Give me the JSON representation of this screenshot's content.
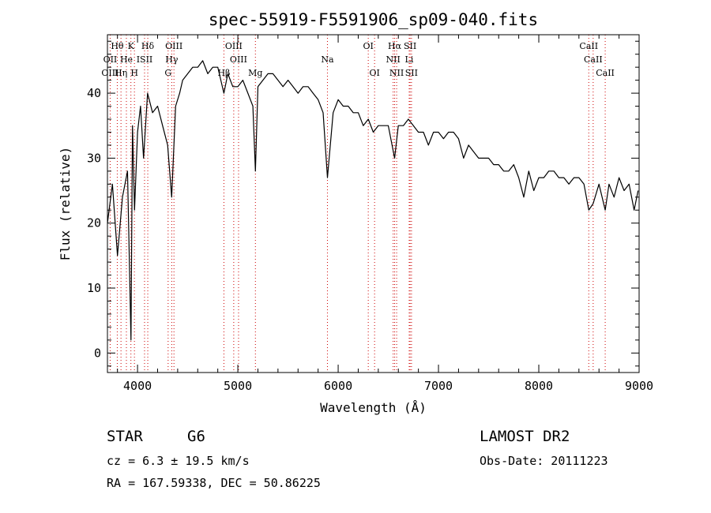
{
  "chart_data": {
    "type": "line",
    "title": "spec-55919-F5591906_sp09-040.fits",
    "xlabel": "Wavelength (Å)",
    "ylabel": "Flux (relative)",
    "xlim": [
      3700,
      9000
    ],
    "ylim": [
      -3,
      49
    ],
    "xticks": [
      4000,
      5000,
      6000,
      7000,
      8000,
      9000
    ],
    "yticks": [
      0,
      10,
      20,
      30,
      40
    ],
    "grid": false,
    "series": [
      {
        "x": [
          3700,
          3750,
          3800,
          3850,
          3900,
          3935,
          3950,
          3970,
          4000,
          4030,
          4060,
          4100,
          4150,
          4200,
          4250,
          4300,
          4340,
          4380,
          4420,
          4450,
          4500,
          4550,
          4600,
          4650,
          4700,
          4750,
          4800,
          4861,
          4900,
          4950,
          5000,
          5050,
          5100,
          5150,
          5175,
          5200,
          5250,
          5300,
          5350,
          5400,
          5450,
          5500,
          5550,
          5600,
          5650,
          5700,
          5750,
          5800,
          5850,
          5893,
          5950,
          6000,
          6050,
          6100,
          6150,
          6200,
          6250,
          6300,
          6350,
          6400,
          6450,
          6500,
          6563,
          6600,
          6650,
          6700,
          6750,
          6800,
          6850,
          6900,
          6950,
          7000,
          7050,
          7100,
          7150,
          7200,
          7250,
          7300,
          7350,
          7400,
          7450,
          7500,
          7550,
          7600,
          7650,
          7700,
          7750,
          7800,
          7850,
          7900,
          7950,
          8000,
          8050,
          8100,
          8150,
          8200,
          8250,
          8300,
          8350,
          8400,
          8450,
          8498,
          8542,
          8600,
          8662,
          8700,
          8750,
          8800,
          8850,
          8900,
          8950,
          8990
        ],
        "y": [
          20,
          26,
          15,
          24,
          28,
          2,
          35,
          22,
          34,
          38,
          30,
          40,
          37,
          38,
          35,
          32,
          24,
          38,
          40,
          42,
          43,
          44,
          44,
          45,
          43,
          44,
          44,
          40,
          43,
          41,
          41,
          42,
          40,
          38,
          28,
          41,
          42,
          43,
          43,
          42,
          41,
          42,
          41,
          40,
          41,
          41,
          40,
          39,
          37,
          27,
          37,
          39,
          38,
          38,
          37,
          37,
          35,
          36,
          34,
          35,
          35,
          35,
          30,
          35,
          35,
          36,
          35,
          34,
          34,
          32,
          34,
          34,
          33,
          34,
          34,
          33,
          30,
          32,
          31,
          30,
          30,
          30,
          29,
          29,
          28,
          28,
          29,
          27,
          24,
          28,
          25,
          27,
          27,
          28,
          28,
          27,
          27,
          26,
          27,
          27,
          26,
          22,
          23,
          26,
          22,
          26,
          24,
          27,
          25,
          26,
          22,
          25
        ]
      }
    ],
    "line_labels": [
      {
        "text": "Hθ",
        "x": 3798,
        "row": 0
      },
      {
        "text": "K",
        "x": 3934,
        "row": 0
      },
      {
        "text": "Hδ",
        "x": 4102,
        "row": 0
      },
      {
        "text": "OIII",
        "x": 4363,
        "row": 0
      },
      {
        "text": "OIII",
        "x": 4959,
        "row": 0
      },
      {
        "text": "OI",
        "x": 6300,
        "row": 0
      },
      {
        "text": "Hα",
        "x": 6563,
        "row": 0
      },
      {
        "text": "SII",
        "x": 6717,
        "row": 0
      },
      {
        "text": "CaII",
        "x": 8498,
        "row": 0
      },
      {
        "text": "OII",
        "x": 3727,
        "row": 1
      },
      {
        "text": "He",
        "x": 3889,
        "row": 1
      },
      {
        "text": "ISII",
        "x": 4070,
        "row": 1
      },
      {
        "text": "Hγ",
        "x": 4341,
        "row": 1
      },
      {
        "text": "OIII",
        "x": 5007,
        "row": 1
      },
      {
        "text": "Na",
        "x": 5893,
        "row": 1
      },
      {
        "text": "NII",
        "x": 6548,
        "row": 1
      },
      {
        "text": "Li",
        "x": 6708,
        "row": 1
      },
      {
        "text": "CaII",
        "x": 8542,
        "row": 1
      },
      {
        "text": "OIII",
        "x": 3727,
        "row": 2
      },
      {
        "text": "Hη",
        "x": 3835,
        "row": 2
      },
      {
        "text": "H",
        "x": 3969,
        "row": 2
      },
      {
        "text": "G",
        "x": 4305,
        "row": 2
      },
      {
        "text": "Hβ",
        "x": 4861,
        "row": 2
      },
      {
        "text": "Mg",
        "x": 5175,
        "row": 2
      },
      {
        "text": "OI",
        "x": 6363,
        "row": 2
      },
      {
        "text": "NII",
        "x": 6583,
        "row": 2
      },
      {
        "text": "SII",
        "x": 6731,
        "row": 2
      },
      {
        "text": "CaII",
        "x": 8662,
        "row": 2
      }
    ],
    "line_positions": [
      3727,
      3798,
      3835,
      3889,
      3934,
      3969,
      4070,
      4102,
      4305,
      4341,
      4363,
      4861,
      4959,
      5007,
      5175,
      5893,
      6300,
      6363,
      6548,
      6563,
      6583,
      6708,
      6717,
      6731,
      8498,
      8542,
      8662
    ],
    "colors": {
      "spectrum": "#000000",
      "marker": "#cc0000",
      "axes": "#000000"
    }
  },
  "info": {
    "class": "STAR",
    "subclass": "G6",
    "survey": "LAMOST DR2",
    "cz": "cz = 6.3 ± 19.5 km/s",
    "obs_date": "Obs-Date: 20111223",
    "coords": "RA = 167.59338, DEC =  50.86225"
  }
}
